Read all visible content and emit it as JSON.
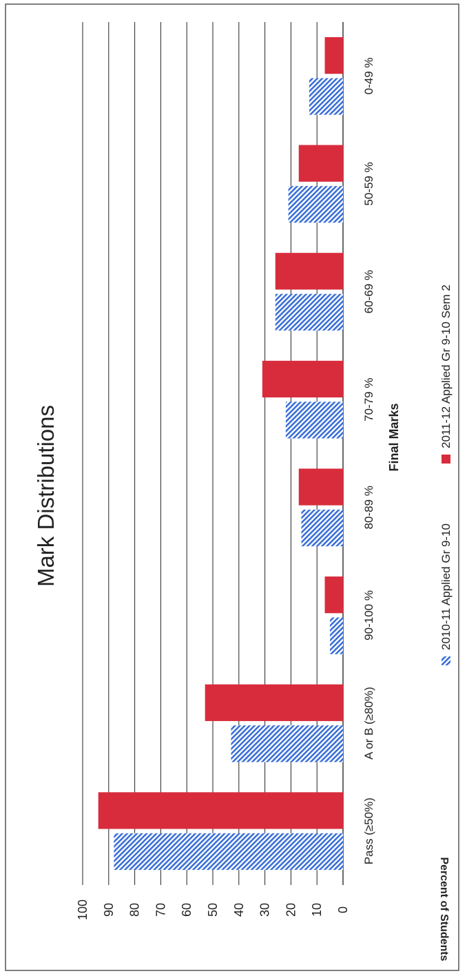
{
  "chart_data": {
    "type": "bar",
    "orientation": "vertical (page rotated 90° counter-clockwise)",
    "title": "Mark Distributions",
    "xlabel": "Final Marks",
    "ylabel": "Percent of Students",
    "ylim": [
      0,
      100
    ],
    "yticks": [
      "0",
      "10",
      "20",
      "30",
      "40",
      "50",
      "60",
      "70",
      "80",
      "90",
      "100"
    ],
    "grid": true,
    "legend_position": "bottom",
    "categories": [
      "Pass (≥50%)",
      "A or B (≥80%)",
      "90-100 %",
      "80-89 %",
      "70-79 %",
      "60-69 %",
      "50-59 %",
      "0-49 %"
    ],
    "series": [
      {
        "name": "2010-11 Applied Gr 9-10",
        "color": "#3a6fd6",
        "pattern": "diagonal-hatch",
        "values": [
          88,
          43,
          5,
          16,
          22,
          26,
          21,
          13
        ]
      },
      {
        "name": "2011-12 Applied Gr 9-10 Sem 2",
        "color": "#d82c3c",
        "pattern": "solid",
        "values": [
          94,
          53,
          7,
          17,
          31,
          26,
          17,
          7
        ]
      }
    ]
  }
}
